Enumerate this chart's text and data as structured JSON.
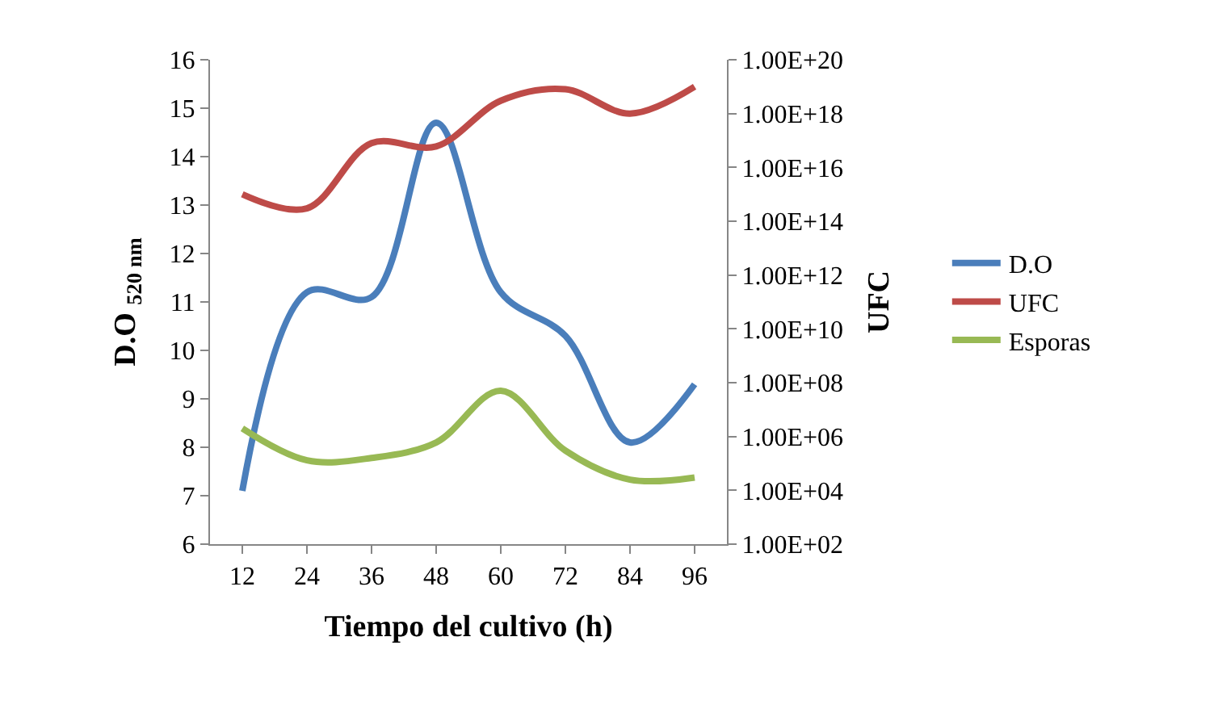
{
  "chart_data": {
    "type": "line",
    "xlabel": "Tiempo del cultivo (h)",
    "ylabel": "D.O $_{520 nm}$",
    "y2label": "UFC",
    "categories": [
      "12",
      "24",
      "36",
      "48",
      "60",
      "72",
      "84",
      "96"
    ],
    "series": [
      {
        "name": "D.O",
        "color": "#4a7ebb",
        "values": [
          7.1,
          11.2,
          11.1,
          14.7,
          11.2,
          10.3,
          8.1,
          9.3
        ]
      },
      {
        "name": "UFC",
        "color": "#be4b48",
        "axis": "y2",
        "values": [
          1000000000000000.0,
          300000000000000.0,
          8e+16,
          6e+16,
          3e+18,
          8e+18,
          1e+18,
          1e+19
        ]
      },
      {
        "name": "Esporas",
        "color": "#98b954",
        "axis": "y2",
        "values": [
          2000000.0,
          130000.0,
          160000.0,
          600000.0,
          50000000.0,
          300000.0,
          25000.0,
          30000.0
        ]
      }
    ],
    "ylim": [
      6,
      16
    ],
    "yticks": [
      6,
      7,
      8,
      9,
      10,
      11,
      12,
      13,
      14,
      15,
      16
    ],
    "y2lim": [
      100,
      1e+20
    ],
    "y2ticks": [
      {
        "value": 100,
        "label": "1.00E+02"
      },
      {
        "value": 10000.0,
        "label": "1.00E+04"
      },
      {
        "value": 1000000.0,
        "label": "1.00E+06"
      },
      {
        "value": 100000000.0,
        "label": "1.00E+08"
      },
      {
        "value": 10000000000.0,
        "label": "1.00E+10"
      },
      {
        "value": 1000000000000.0,
        "label": "1.00E+12"
      },
      {
        "value": 100000000000000.0,
        "label": "1.00E+14"
      },
      {
        "value": 1e+16,
        "label": "1.00E+16"
      },
      {
        "value": 1e+18,
        "label": "1.00E+18"
      },
      {
        "value": 1e+20,
        "label": "1.00E+20"
      }
    ],
    "log": "y2",
    "legend": "right",
    "marker": "none",
    "line_style": "solid"
  }
}
